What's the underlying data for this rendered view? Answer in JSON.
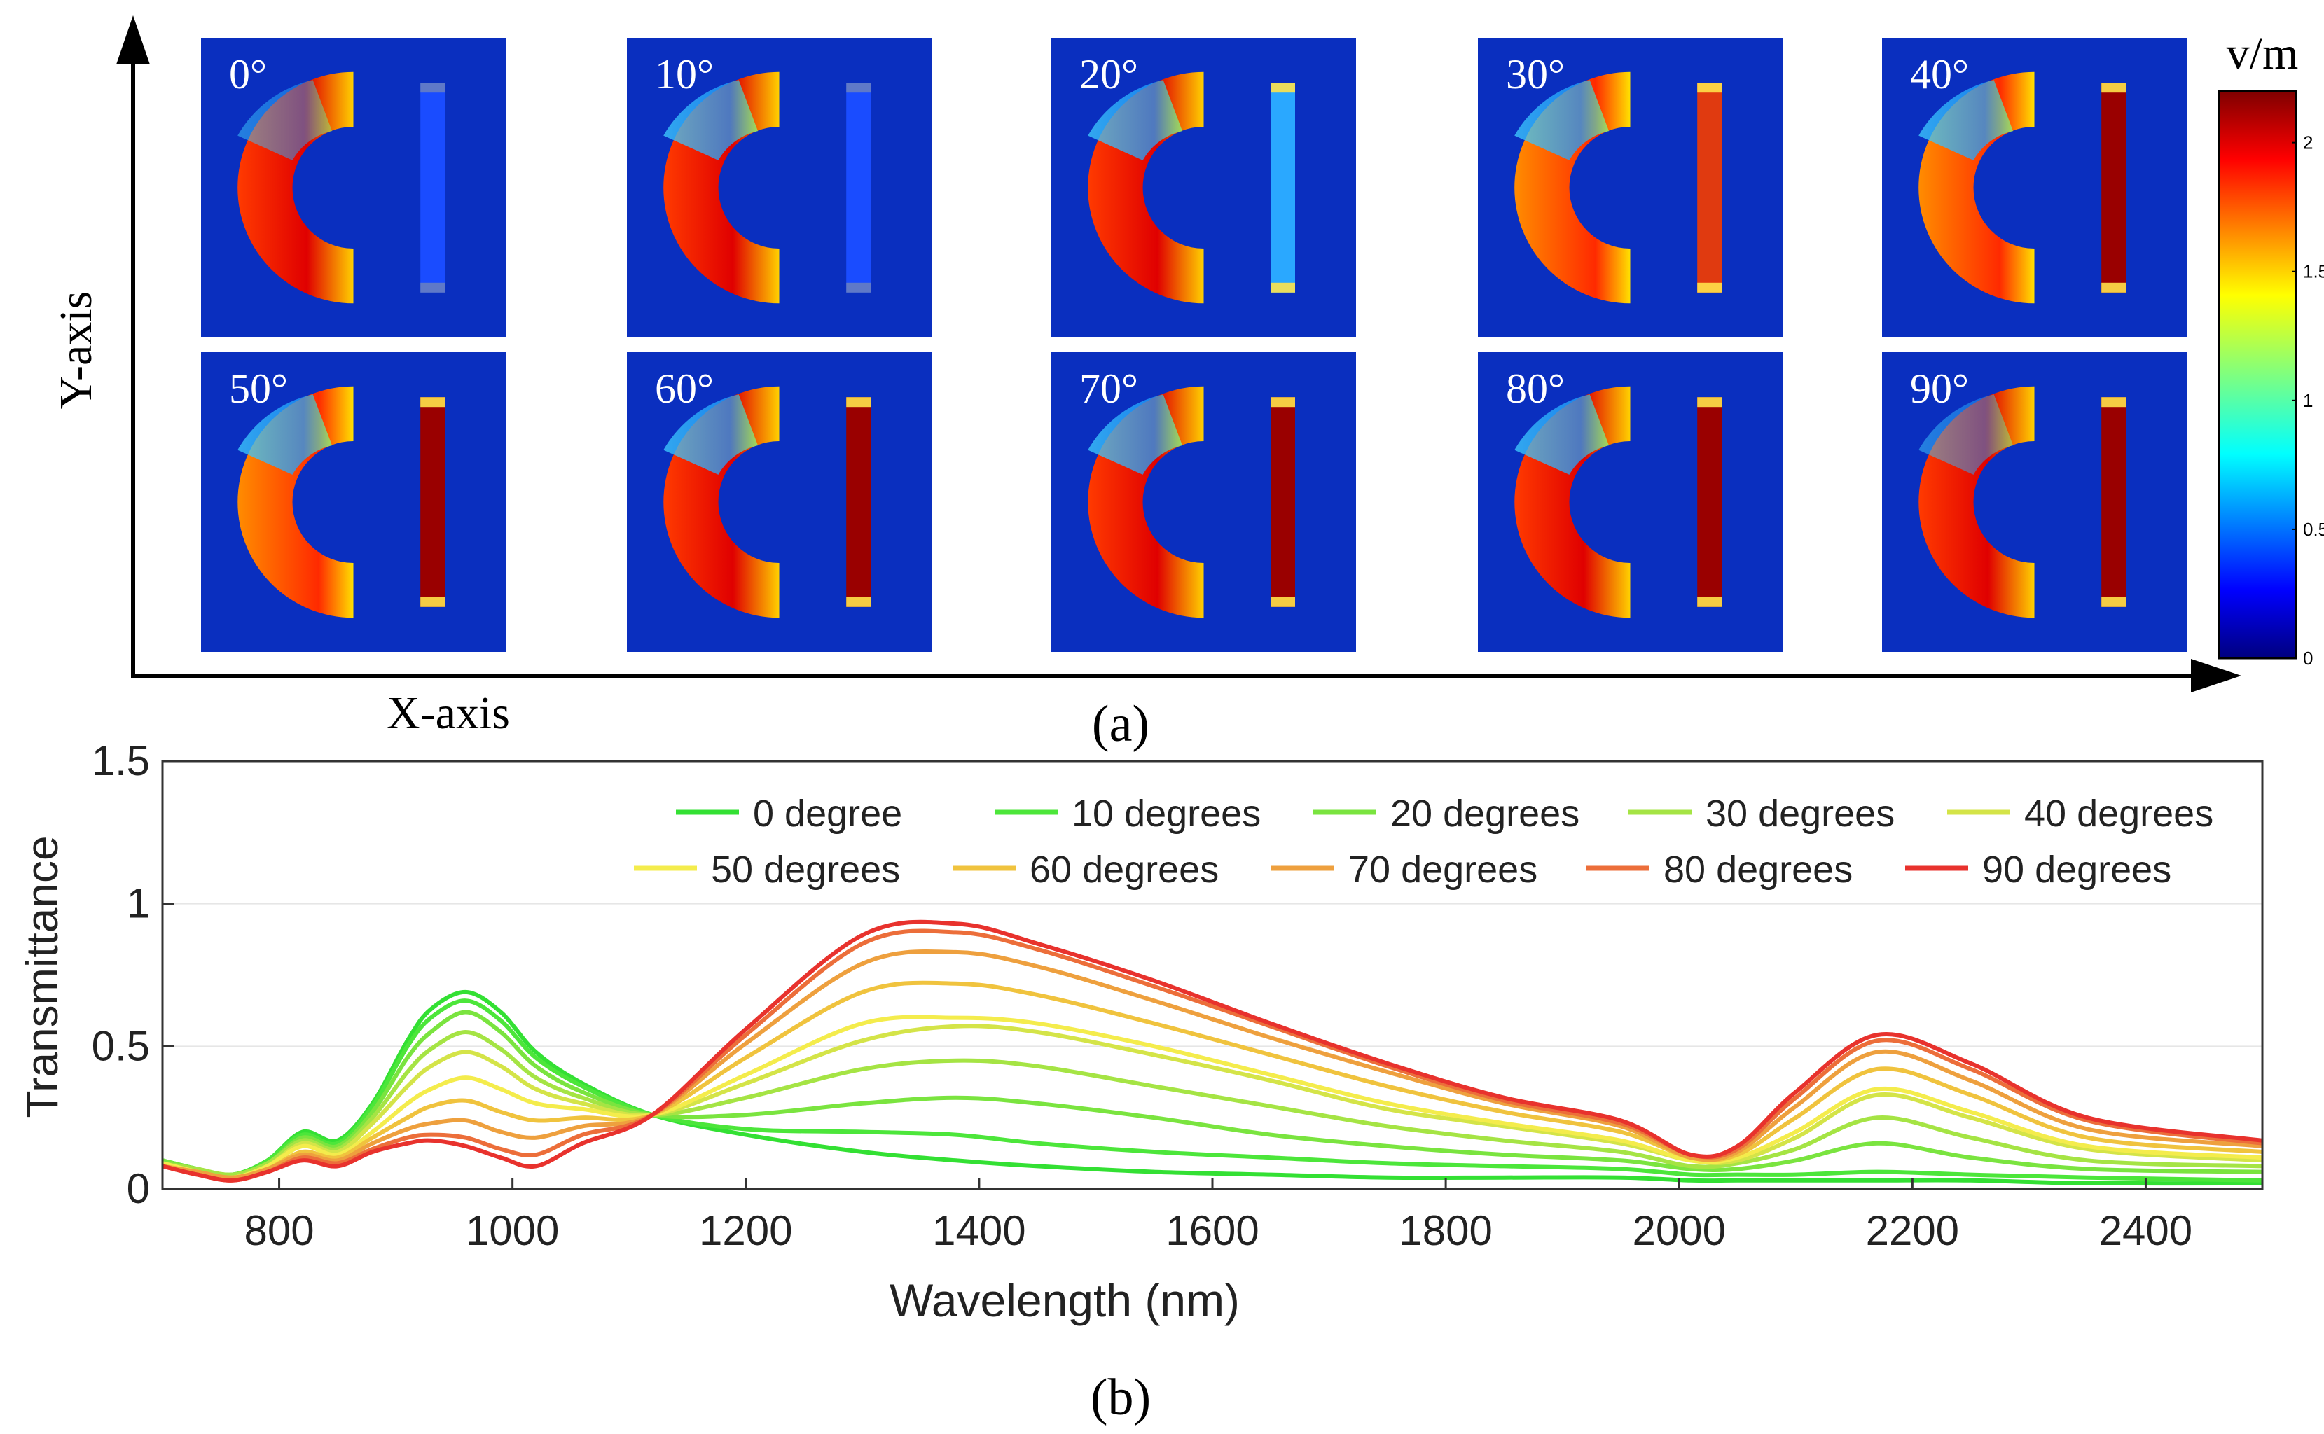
{
  "panel_a": {
    "y_axis_label": "Y-axis",
    "x_axis_label": "X-axis",
    "caption": "(a)",
    "colorbar": {
      "unit": "v/m",
      "ticks": [
        "0",
        "0.5",
        "1",
        "1.5",
        "2"
      ],
      "min": 0,
      "max": 2.2
    },
    "angle_labels": [
      "0°",
      "10°",
      "20°",
      "30°",
      "40°",
      "50°",
      "60°",
      "70°",
      "80°",
      "90°"
    ]
  },
  "chart_data": {
    "type": "line",
    "caption": "(b)",
    "xlabel": "Wavelength (nm)",
    "ylabel": "Transmittance",
    "xlim": [
      700,
      2500
    ],
    "ylim": [
      0,
      1.5
    ],
    "xticks": [
      800,
      1000,
      1200,
      1400,
      1600,
      1800,
      2000,
      2200,
      2400
    ],
    "yticks": [
      0,
      0.5,
      1,
      1.5
    ],
    "ytick_labels": [
      "0",
      "0.5",
      "1",
      "1.5"
    ],
    "legend_position": "top-right",
    "x": [
      700,
      730,
      760,
      790,
      820,
      850,
      880,
      910,
      930,
      960,
      990,
      1020,
      1060,
      1120,
      1200,
      1300,
      1380,
      1450,
      1550,
      1650,
      1750,
      1850,
      1950,
      2010,
      2050,
      2100,
      2170,
      2250,
      2350,
      2500
    ],
    "series": [
      {
        "name": "0  degree",
        "color": "#33e033",
        "values": [
          0.1,
          0.07,
          0.05,
          0.1,
          0.2,
          0.17,
          0.3,
          0.52,
          0.63,
          0.69,
          0.62,
          0.48,
          0.37,
          0.26,
          0.19,
          0.13,
          0.1,
          0.08,
          0.06,
          0.05,
          0.04,
          0.04,
          0.04,
          0.03,
          0.03,
          0.03,
          0.03,
          0.03,
          0.02,
          0.02
        ]
      },
      {
        "name": "10 degrees",
        "color": "#4ce63a",
        "values": [
          0.1,
          0.07,
          0.05,
          0.1,
          0.19,
          0.16,
          0.29,
          0.5,
          0.6,
          0.66,
          0.59,
          0.46,
          0.36,
          0.26,
          0.21,
          0.2,
          0.19,
          0.16,
          0.13,
          0.11,
          0.09,
          0.08,
          0.07,
          0.05,
          0.05,
          0.05,
          0.06,
          0.05,
          0.04,
          0.03
        ]
      },
      {
        "name": "20 degrees",
        "color": "#7ae43f",
        "values": [
          0.1,
          0.07,
          0.05,
          0.09,
          0.18,
          0.15,
          0.27,
          0.46,
          0.55,
          0.62,
          0.55,
          0.43,
          0.34,
          0.26,
          0.26,
          0.3,
          0.32,
          0.3,
          0.25,
          0.19,
          0.15,
          0.12,
          0.1,
          0.07,
          0.07,
          0.1,
          0.16,
          0.11,
          0.07,
          0.06
        ]
      },
      {
        "name": "30 degrees",
        "color": "#a5e444",
        "values": [
          0.09,
          0.07,
          0.05,
          0.09,
          0.17,
          0.14,
          0.25,
          0.41,
          0.49,
          0.55,
          0.49,
          0.39,
          0.32,
          0.26,
          0.32,
          0.42,
          0.45,
          0.43,
          0.36,
          0.29,
          0.22,
          0.17,
          0.13,
          0.08,
          0.09,
          0.14,
          0.25,
          0.18,
          0.1,
          0.08
        ]
      },
      {
        "name": "40 degrees",
        "color": "#d4e448",
        "values": [
          0.09,
          0.06,
          0.04,
          0.08,
          0.16,
          0.13,
          0.23,
          0.36,
          0.43,
          0.48,
          0.43,
          0.35,
          0.3,
          0.26,
          0.37,
          0.52,
          0.57,
          0.55,
          0.47,
          0.38,
          0.28,
          0.22,
          0.16,
          0.1,
          0.1,
          0.18,
          0.33,
          0.25,
          0.14,
          0.1
        ]
      },
      {
        "name": "50 degrees",
        "color": "#f4ec4c",
        "values": [
          0.09,
          0.06,
          0.04,
          0.08,
          0.15,
          0.12,
          0.2,
          0.3,
          0.35,
          0.39,
          0.35,
          0.3,
          0.28,
          0.26,
          0.4,
          0.58,
          0.6,
          0.58,
          0.5,
          0.4,
          0.3,
          0.23,
          0.17,
          0.1,
          0.11,
          0.2,
          0.35,
          0.27,
          0.15,
          0.11
        ]
      },
      {
        "name": "60 degrees",
        "color": "#f0c33e",
        "values": [
          0.08,
          0.06,
          0.04,
          0.07,
          0.13,
          0.11,
          0.18,
          0.25,
          0.29,
          0.31,
          0.27,
          0.24,
          0.25,
          0.26,
          0.46,
          0.69,
          0.72,
          0.68,
          0.58,
          0.47,
          0.36,
          0.27,
          0.2,
          0.11,
          0.12,
          0.25,
          0.42,
          0.33,
          0.18,
          0.13
        ]
      },
      {
        "name": "70 degrees",
        "color": "#eea03e",
        "values": [
          0.08,
          0.06,
          0.04,
          0.07,
          0.12,
          0.1,
          0.16,
          0.21,
          0.23,
          0.24,
          0.2,
          0.18,
          0.22,
          0.26,
          0.51,
          0.79,
          0.83,
          0.78,
          0.66,
          0.53,
          0.41,
          0.3,
          0.22,
          0.11,
          0.13,
          0.29,
          0.48,
          0.38,
          0.21,
          0.15
        ]
      },
      {
        "name": "80 degrees",
        "color": "#ec6e3a",
        "values": [
          0.08,
          0.05,
          0.03,
          0.06,
          0.11,
          0.09,
          0.14,
          0.18,
          0.19,
          0.18,
          0.14,
          0.12,
          0.19,
          0.26,
          0.54,
          0.86,
          0.9,
          0.84,
          0.71,
          0.57,
          0.43,
          0.31,
          0.23,
          0.12,
          0.14,
          0.32,
          0.52,
          0.42,
          0.24,
          0.16
        ]
      },
      {
        "name": "90 degrees",
        "color": "#e8322d",
        "values": [
          0.08,
          0.05,
          0.03,
          0.06,
          0.1,
          0.08,
          0.13,
          0.16,
          0.17,
          0.15,
          0.11,
          0.08,
          0.16,
          0.26,
          0.56,
          0.89,
          0.93,
          0.86,
          0.73,
          0.58,
          0.44,
          0.32,
          0.24,
          0.12,
          0.15,
          0.34,
          0.54,
          0.44,
          0.25,
          0.17
        ]
      }
    ]
  }
}
